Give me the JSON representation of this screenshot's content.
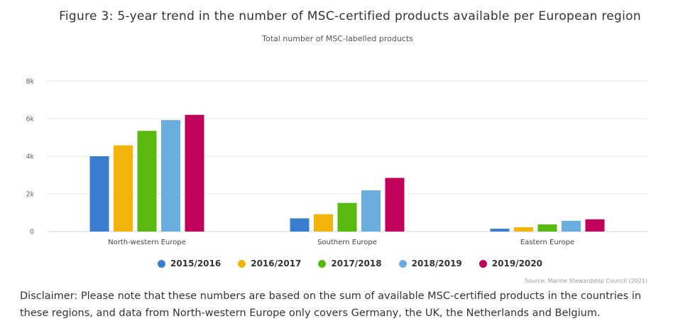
{
  "title": "Figure 3: 5-year trend in the number of MSC-certified products available per European region",
  "subtitle": "Total number of MSC-labelled products",
  "source": "Source: Marine Stewardship Council (2021)",
  "disclaimer": "Disclaimer: Please note that these numbers are based on the sum of available MSC-certified products in the countries in these regions, and data from North-western Europe only covers Germany, the UK, the Netherlands and Belgium.",
  "chart_data": {
    "type": "bar",
    "title": "Figure 3: 5-year trend in the number of MSC-certified products available per European region",
    "subtitle": "Total number of MSC-labelled products",
    "xlabel": "",
    "ylabel": "",
    "ylim": [
      0,
      8000
    ],
    "yticks": [
      0,
      2000,
      4000,
      6000,
      8000
    ],
    "ytick_labels": [
      "0",
      "2k",
      "4k",
      "6k",
      "8k"
    ],
    "grid": true,
    "legend_position": "bottom-center",
    "categories": [
      "North-western Europe",
      "Southern Europe",
      "Eastern Europe"
    ],
    "series": [
      {
        "name": "2015/2016",
        "color": "#3a7dcf",
        "values": [
          4000,
          700,
          150
        ]
      },
      {
        "name": "2016/2017",
        "color": "#f2b40a",
        "values": [
          4580,
          920,
          230
        ]
      },
      {
        "name": "2017/2018",
        "color": "#59b90f",
        "values": [
          5350,
          1520,
          380
        ]
      },
      {
        "name": "2018/2019",
        "color": "#6aaedf",
        "values": [
          5920,
          2190,
          570
        ]
      },
      {
        "name": "2019/2020",
        "color": "#c0005a",
        "values": [
          6200,
          2850,
          650
        ]
      }
    ]
  }
}
